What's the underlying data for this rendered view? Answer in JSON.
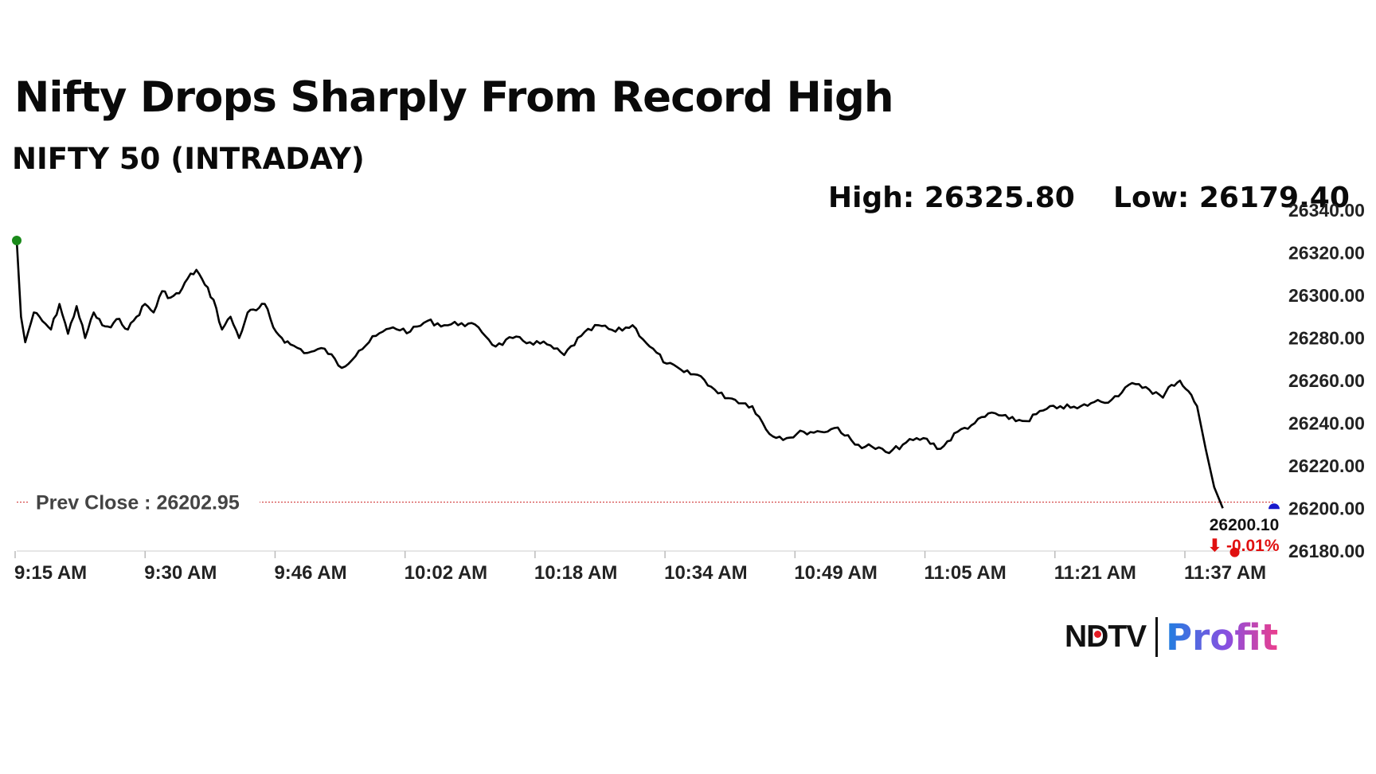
{
  "headline": "Nifty Drops Sharply From Record High",
  "subtitle": "NIFTY 50 (INTRADAY)",
  "stats": {
    "high": "High: 26325.80",
    "low": "Low: 26179.40"
  },
  "prev_close_label": "Prev Close : 26202.95",
  "last_price_label": "26200.10",
  "change_label": "⬇ -0.01%",
  "logo": {
    "brand": "NDTV",
    "product": "Profit"
  },
  "colors": {
    "line": "#000000",
    "prev_close_line": "#cc2222",
    "open_marker": "#1a8a1a",
    "low_marker": "#e01010",
    "last_marker": "#1a1acc",
    "change_negative": "#e01010"
  },
  "chart_data": {
    "type": "line",
    "title": "NIFTY 50 (INTRADAY)",
    "x_ticks": [
      "9:15 AM",
      "9:30 AM",
      "9:46 AM",
      "10:02 AM",
      "10:18 AM",
      "10:34 AM",
      "10:49 AM",
      "11:05 AM",
      "11:21 AM",
      "11:37 AM"
    ],
    "y_ticks": [
      "26340.00",
      "26320.00",
      "26300.00",
      "26280.00",
      "26260.00",
      "26240.00",
      "26220.00",
      "26200.00",
      "26180.00"
    ],
    "ylim": [
      26180,
      26340
    ],
    "xlim_minutes_after_open": [
      0,
      147
    ],
    "prev_close": 26202.95,
    "high": 26325.8,
    "low": 26179.4,
    "last": 26200.1,
    "change_pct": -0.01,
    "series": [
      {
        "x_minutes_after_open": [
          0,
          0.5,
          1,
          2,
          3,
          4,
          5,
          6,
          7,
          8,
          9,
          10,
          11,
          12,
          13,
          14,
          15,
          16,
          17,
          18,
          19,
          20,
          21,
          22,
          23,
          24,
          25,
          26,
          27,
          28,
          29,
          30,
          31,
          32,
          34,
          36,
          38,
          40,
          42,
          44,
          46,
          48,
          50,
          52,
          54,
          56,
          58,
          60,
          62,
          64,
          66,
          68,
          70,
          72,
          74,
          76,
          78,
          80,
          82,
          84,
          86,
          88,
          90,
          92,
          94,
          96,
          98,
          100,
          102,
          104,
          106,
          108,
          110,
          112,
          114,
          116,
          118,
          120,
          122,
          124,
          126,
          128,
          130,
          132,
          134,
          135,
          136,
          137,
          138,
          139,
          140,
          141
        ],
        "y": [
          26325.8,
          26290,
          26278,
          26292,
          26288,
          26284,
          26296,
          26282,
          26295,
          26280,
          26292,
          26286,
          26285,
          26289,
          26284,
          26290,
          26296,
          26292,
          26302,
          26299,
          26301,
          26308,
          26312,
          26305,
          26298,
          26284,
          26290,
          26280,
          26292,
          26293,
          26296,
          26285,
          26280,
          26277,
          26273,
          26275,
          26266,
          26274,
          26281,
          26285,
          26283,
          26288,
          26286,
          26287,
          26285,
          26276,
          26280,
          26278,
          26277,
          26272,
          26281,
          26286,
          26283,
          26286,
          26276,
          26268,
          26264,
          26262,
          26254,
          26251,
          26248,
          26235,
          26233,
          26236,
          26236,
          26238,
          26230,
          26229,
          26226,
          26231,
          26233,
          26228,
          26236,
          26240,
          26245,
          26242,
          26241,
          26246,
          26248,
          26247,
          26250,
          26251,
          26258,
          26257,
          26252,
          26258,
          26260,
          26255,
          26248,
          26228,
          26210,
          26200.1
        ]
      }
    ]
  }
}
